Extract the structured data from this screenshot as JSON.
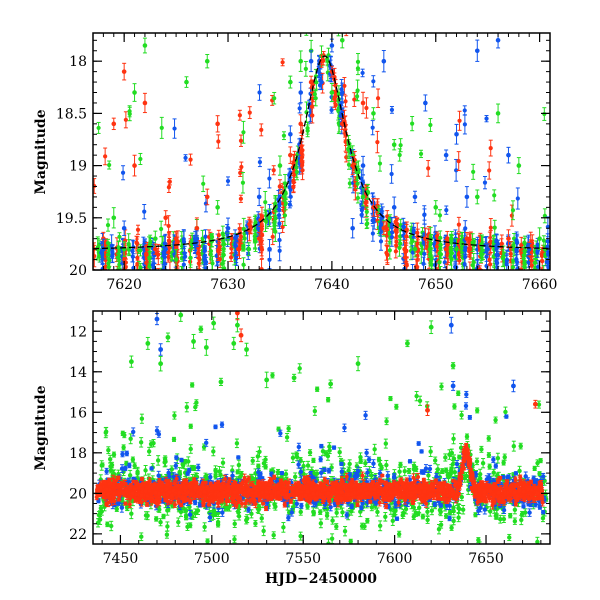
{
  "chart_data": [
    {
      "type": "scatter",
      "title": "",
      "xlabel": "",
      "ylabel": "Magnitude",
      "xlim": [
        7617,
        7661
      ],
      "ylim": [
        20.0,
        17.73
      ],
      "y_inverted": true,
      "x_ticks": [
        7620,
        7630,
        7640,
        7650,
        7660
      ],
      "y_ticks": [
        18,
        18.5,
        19,
        19.5,
        20
      ],
      "grid": false,
      "legend": "none",
      "series_colors": {
        "green": "#22dd22",
        "red": "#ff3311",
        "blue": "#1155ee",
        "model": "#000000"
      },
      "model_curve": {
        "style": "dashed",
        "peak_x": 7639.3,
        "peak_y": 17.95,
        "baseline_y": 19.82,
        "x_start": 7617,
        "x_end": 7661
      },
      "series": [
        {
          "color": "green",
          "description_points": [
            [
              7618,
              19.8
            ],
            [
              7619,
              19.5
            ],
            [
              7620,
              19.8
            ],
            [
              7621,
              18.3
            ],
            [
              7622,
              17.85
            ],
            [
              7623,
              19.7
            ],
            [
              7625,
              19.9
            ],
            [
              7626,
              18.2
            ],
            [
              7627,
              19.6
            ],
            [
              7628,
              18.0
            ],
            [
              7629,
              19.4
            ],
            [
              7630,
              19.7
            ],
            [
              7632,
              19.8
            ],
            [
              7634,
              19.5
            ],
            [
              7635,
              19.0
            ],
            [
              7636,
              18.2
            ],
            [
              7637,
              18.0
            ],
            [
              7638,
              17.9
            ],
            [
              7639,
              17.95
            ],
            [
              7640,
              18.3
            ],
            [
              7641,
              17.8
            ],
            [
              7642,
              18.9
            ],
            [
              7643,
              19.3
            ],
            [
              7644,
              18.5
            ],
            [
              7645,
              19.6
            ],
            [
              7646,
              18.8
            ],
            [
              7648,
              19.8
            ],
            [
              7650,
              19.4
            ],
            [
              7652,
              19.8
            ],
            [
              7654,
              19.3
            ],
            [
              7656,
              18.5
            ],
            [
              7658,
              19.0
            ],
            [
              7660,
              19.7
            ]
          ]
        },
        {
          "color": "red",
          "description_points": [
            [
              7618,
              19.7
            ],
            [
              7619,
              18.6
            ],
            [
              7620,
              18.1
            ],
            [
              7621,
              19.0
            ],
            [
              7622,
              18.4
            ],
            [
              7623,
              19.8
            ],
            [
              7624,
              19.5
            ],
            [
              7625,
              19.7
            ],
            [
              7627,
              19.6
            ],
            [
              7628,
              19.3
            ],
            [
              7629,
              18.6
            ],
            [
              7631,
              19.8
            ],
            [
              7633,
              19.7
            ],
            [
              7635,
              19.2
            ],
            [
              7636,
              18.9
            ],
            [
              7637,
              18.6
            ],
            [
              7638,
              18.2
            ],
            [
              7639,
              18.0
            ],
            [
              7640,
              18.1
            ],
            [
              7641,
              18.6
            ],
            [
              7642,
              19.0
            ],
            [
              7643,
              18.4
            ],
            [
              7644,
              19.4
            ],
            [
              7645,
              19.6
            ],
            [
              7647,
              19.8
            ],
            [
              7649,
              19.7
            ],
            [
              7651,
              19.8
            ],
            [
              7653,
              19.7
            ],
            [
              7655,
              19.8
            ],
            [
              7657,
              19.7
            ],
            [
              7659,
              19.8
            ]
          ]
        },
        {
          "color": "blue",
          "description_points": [
            [
              7618,
              19.8
            ],
            [
              7620,
              19.6
            ],
            [
              7624,
              19.8
            ],
            [
              7627,
              19.7
            ],
            [
              7630,
              19.6
            ],
            [
              7633,
              19.3
            ],
            [
              7634,
              19.8
            ],
            [
              7636,
              18.7
            ],
            [
              7637,
              18.3
            ],
            [
              7638,
              18.0
            ],
            [
              7639,
              18.2
            ],
            [
              7640,
              17.85
            ],
            [
              7641,
              18.3
            ],
            [
              7642,
              19.6
            ],
            [
              7643,
              19.0
            ],
            [
              7645,
              18.0
            ],
            [
              7646,
              19.4
            ],
            [
              7648,
              19.3
            ],
            [
              7649,
              18.4
            ],
            [
              7651,
              18.9
            ],
            [
              7652,
              18.7
            ],
            [
              7653,
              19.3
            ],
            [
              7654,
              17.9
            ],
            [
              7655,
              19.8
            ],
            [
              7656,
              17.8
            ],
            [
              7657,
              18.9
            ],
            [
              7659,
              19.8
            ]
          ]
        }
      ]
    },
    {
      "type": "scatter",
      "title": "",
      "xlabel": "HJD−2450000",
      "ylabel": "Magnitude",
      "xlim": [
        7435,
        7685
      ],
      "ylim": [
        22.5,
        11
      ],
      "y_inverted": true,
      "x_ticks": [
        7450,
        7500,
        7550,
        7600,
        7650
      ],
      "y_ticks": [
        12,
        14,
        16,
        18,
        20,
        22
      ],
      "grid": false,
      "legend": "none",
      "series_colors": {
        "green": "#22dd22",
        "red": "#ff3311",
        "blue": "#1155ee"
      },
      "baseline_magnitude": 19.9,
      "event_peak": {
        "x": 7639,
        "y": 18.0
      },
      "outliers": [
        {
          "color": "green",
          "x": 7456,
          "y": 13.5
        },
        {
          "color": "green",
          "x": 7465,
          "y": 12.6
        },
        {
          "color": "green",
          "x": 7472,
          "y": 13.6
        },
        {
          "color": "green",
          "x": 7476,
          "y": 12.3
        },
        {
          "color": "green",
          "x": 7483,
          "y": 11.2
        },
        {
          "color": "green",
          "x": 7490,
          "y": 12.5
        },
        {
          "color": "green",
          "x": 7494,
          "y": 11.9
        },
        {
          "color": "green",
          "x": 7497,
          "y": 12.8
        },
        {
          "color": "green",
          "x": 7501,
          "y": 11.6
        },
        {
          "color": "green",
          "x": 7505,
          "y": 14.5
        },
        {
          "color": "green",
          "x": 7512,
          "y": 12.6
        },
        {
          "color": "green",
          "x": 7514,
          "y": 11.7
        },
        {
          "color": "green",
          "x": 7519,
          "y": 12.9
        },
        {
          "color": "green",
          "x": 7530,
          "y": 14.4
        },
        {
          "color": "green",
          "x": 7545,
          "y": 14.3
        },
        {
          "color": "green",
          "x": 7565,
          "y": 14.6
        },
        {
          "color": "green",
          "x": 7580,
          "y": 13.6
        },
        {
          "color": "green",
          "x": 7607,
          "y": 12.6
        },
        {
          "color": "green",
          "x": 7620,
          "y": 11.8
        },
        {
          "color": "green",
          "x": 7632,
          "y": 13.7
        },
        {
          "color": "blue",
          "x": 7470,
          "y": 11.4
        },
        {
          "color": "blue",
          "x": 7472,
          "y": 12.9
        },
        {
          "color": "blue",
          "x": 7631,
          "y": 11.7
        },
        {
          "color": "blue",
          "x": 7632,
          "y": 14.7
        },
        {
          "color": "blue",
          "x": 7665,
          "y": 14.7
        },
        {
          "color": "red",
          "x": 7514,
          "y": 11.1
        },
        {
          "color": "red",
          "x": 7516,
          "y": 12.2
        },
        {
          "color": "red",
          "x": 7618,
          "y": 15.9
        },
        {
          "color": "red",
          "x": 7677,
          "y": 15.6
        }
      ]
    }
  ]
}
